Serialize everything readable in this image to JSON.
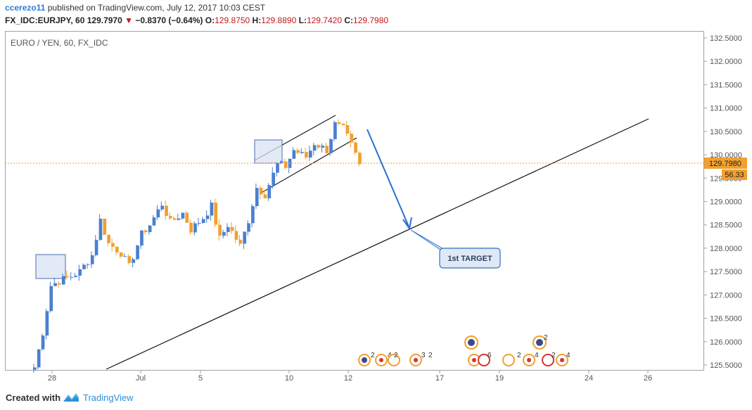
{
  "header": {
    "user": "ccerezo11",
    "published": "published on TradingView.com, July 12, 2017 10:03 CEST",
    "symbol": "FX_IDC:EURJPY, 60",
    "last": "129.7970",
    "change_arrow": "▼",
    "change": "−0.8370 (−0.64%)",
    "o_label": "O:",
    "o_value": "129.8750",
    "h_label": "H:",
    "h_value": "129.8890",
    "l_label": "L:",
    "l_value": "129.7420",
    "c_label": "C:",
    "c_value": "129.7980"
  },
  "footer": {
    "created_with": "Created with",
    "brand": "TradingView"
  },
  "colors": {
    "up": "#4a7fd0",
    "down": "#f0a030",
    "price_line": "#f0a030",
    "arrow": "#2e6fce",
    "callout_bg": "#dfe9f5",
    "callout_border": "#2e6fce"
  },
  "chart_data": {
    "type": "candlestick",
    "title": "EURO / YEN, 60, FX_IDC",
    "ylim": [
      125.35,
      132.65
    ],
    "y_ticks": [
      "132.5000",
      "132.0000",
      "131.5000",
      "131.0000",
      "130.5000",
      "130.0000",
      "129.5000",
      "129.0000",
      "128.5000",
      "128.0000",
      "127.5000",
      "127.0000",
      "126.5000",
      "126.0000",
      "125.5000"
    ],
    "x_ticks": [
      "28",
      "Jul",
      "5",
      "10",
      "12",
      "17",
      "19",
      "24",
      "26"
    ],
    "current_price_label": "129.7980",
    "countdown_label": "56.33",
    "annotation": "1st TARGET",
    "series": [
      {
        "name": "",
        "anchors": [
          [
            0,
            125.45
          ],
          [
            2,
            126.2
          ],
          [
            4,
            127.2
          ],
          [
            6,
            127.3
          ],
          [
            9,
            127.4
          ],
          [
            11,
            127.5
          ],
          [
            14,
            127.85
          ],
          [
            16,
            128.6
          ],
          [
            18,
            128.1
          ],
          [
            21,
            127.9
          ],
          [
            23,
            127.6
          ],
          [
            26,
            128.3
          ],
          [
            28,
            128.5
          ],
          [
            31,
            128.95
          ],
          [
            33,
            128.55
          ],
          [
            36,
            128.75
          ],
          [
            38,
            128.4
          ],
          [
            41,
            128.65
          ],
          [
            43,
            128.9
          ],
          [
            45,
            128.2
          ],
          [
            47,
            128.5
          ],
          [
            50,
            128.05
          ],
          [
            52,
            128.6
          ],
          [
            54,
            129.3
          ],
          [
            56,
            129.15
          ],
          [
            59,
            129.8
          ],
          [
            61,
            129.75
          ],
          [
            63,
            130.1
          ],
          [
            66,
            129.95
          ],
          [
            68,
            130.25
          ],
          [
            71,
            130.1
          ],
          [
            73,
            130.65
          ],
          [
            75,
            130.55
          ],
          [
            77,
            130.2
          ],
          [
            79,
            129.8
          ]
        ]
      }
    ]
  }
}
